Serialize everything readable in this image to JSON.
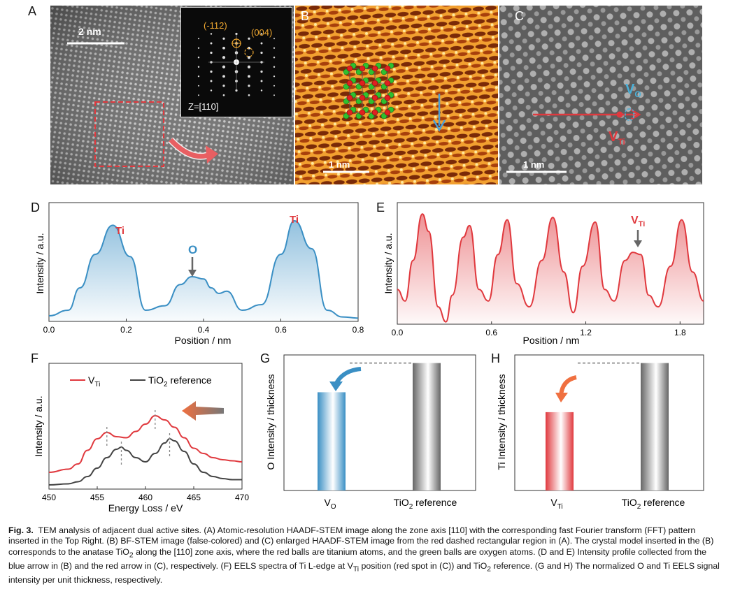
{
  "colors": {
    "red": "#e0393e",
    "blue": "#3a8fc4",
    "gray": "#555555",
    "orange": "#f07040"
  },
  "panelA": {
    "letter": "A",
    "scale": "2 nm",
    "fft_label1": "(-112)",
    "fft_label2": "(004)",
    "zone": "Z=[110]"
  },
  "panelB": {
    "letter": "B",
    "scale": "1 nm"
  },
  "panelC": {
    "letter": "C",
    "scale": "1 nm",
    "vo_main": "V",
    "vo_sub": "O",
    "vti_main": "V",
    "vti_sub": "Ti"
  },
  "panelD": {
    "letter": "D",
    "ylabel": "Intensity / a.u.",
    "xlabel": "Position / nm",
    "ticks": [
      "0.0",
      "0.2",
      "0.4",
      "0.6",
      "0.8"
    ],
    "ti1": "Ti",
    "ti2": "Ti",
    "o": "O"
  },
  "panelE": {
    "letter": "E",
    "ylabel": "Intensity / a.u.",
    "xlabel": "Position / nm",
    "ticks": [
      "0.0",
      "0.6",
      "1.2",
      "1.8"
    ],
    "vti_main": "V",
    "vti_sub": "Ti"
  },
  "panelF": {
    "letter": "F",
    "ylabel": "Intensity / a.u.",
    "xlabel": "Energy Loss / eV",
    "ticks": [
      "450",
      "455",
      "460",
      "465",
      "470"
    ],
    "legend1_main": "V",
    "legend1_sub": "Ti",
    "legend2_pre": "TiO",
    "legend2_sub": "2",
    "legend2_post": " reference"
  },
  "panelG": {
    "letter": "G",
    "ylabel": "O Intensity / thickness",
    "cat1_main": "V",
    "cat1_sub": "O",
    "cat2_pre": "TiO",
    "cat2_sub": "2",
    "cat2_post": " reference"
  },
  "panelH": {
    "letter": "H",
    "ylabel": "Ti Intensity / thickness",
    "cat1_main": "V",
    "cat1_sub": "Ti",
    "cat2_pre": "TiO",
    "cat2_sub": "2",
    "cat2_post": " reference"
  },
  "chart_data": [
    {
      "type": "line",
      "panel": "D",
      "xlabel": "Position / nm",
      "ylabel": "Intensity / a.u.",
      "xlim": [
        0,
        0.8
      ],
      "x": [
        0.0,
        0.05,
        0.08,
        0.12,
        0.165,
        0.21,
        0.25,
        0.3,
        0.34,
        0.37,
        0.4,
        0.42,
        0.44,
        0.46,
        0.5,
        0.55,
        0.6,
        0.635,
        0.68,
        0.72,
        0.76,
        0.8
      ],
      "y": [
        0.05,
        0.1,
        0.3,
        0.6,
        0.86,
        0.58,
        0.1,
        0.14,
        0.33,
        0.4,
        0.38,
        0.3,
        0.25,
        0.27,
        0.1,
        0.15,
        0.6,
        0.9,
        0.65,
        0.1,
        0.04,
        0.03
      ],
      "annotations": [
        "Ti",
        "O",
        "Ti"
      ]
    },
    {
      "type": "line",
      "panel": "E",
      "xlabel": "Position / nm",
      "ylabel": "Intensity / a.u.",
      "xlim": [
        0,
        1.95
      ],
      "x": [
        0.0,
        0.05,
        0.1,
        0.16,
        0.2,
        0.26,
        0.31,
        0.35,
        0.42,
        0.46,
        0.52,
        0.58,
        0.64,
        0.7,
        0.76,
        0.84,
        0.92,
        0.99,
        1.06,
        1.12,
        1.18,
        1.26,
        1.32,
        1.38,
        1.45,
        1.5,
        1.55,
        1.6,
        1.66,
        1.74,
        1.81,
        1.88,
        1.95
      ],
      "y": [
        0.3,
        0.2,
        0.55,
        0.95,
        0.8,
        0.15,
        0.02,
        0.25,
        0.75,
        0.85,
        0.3,
        0.2,
        0.6,
        0.9,
        0.35,
        0.15,
        0.55,
        0.92,
        0.45,
        0.1,
        0.5,
        0.88,
        0.3,
        0.2,
        0.55,
        0.62,
        0.6,
        0.25,
        0.15,
        0.5,
        0.9,
        0.45,
        0.2
      ],
      "annotations": [
        "V_Ti"
      ]
    },
    {
      "type": "line",
      "panel": "F",
      "xlabel": "Energy Loss / eV",
      "ylabel": "Intensity / a.u.",
      "xlim": [
        450,
        470
      ],
      "series": [
        {
          "name": "V_Ti",
          "color": "#e0393e",
          "x": [
            450,
            452,
            453,
            454,
            455,
            456,
            457,
            458,
            459,
            460,
            461,
            462,
            463,
            464,
            465,
            466,
            467,
            468,
            469,
            470
          ],
          "y": [
            0.12,
            0.15,
            0.2,
            0.33,
            0.44,
            0.5,
            0.46,
            0.45,
            0.51,
            0.58,
            0.66,
            0.62,
            0.55,
            0.45,
            0.35,
            0.3,
            0.26,
            0.24,
            0.23,
            0.22
          ]
        },
        {
          "name": "TiO2 reference",
          "color": "#444444",
          "x": [
            450,
            452,
            453,
            454,
            455,
            456,
            457,
            457.5,
            458,
            459,
            460,
            461,
            462,
            462.5,
            463,
            464,
            465,
            466,
            467,
            468,
            469,
            470
          ],
          "y": [
            0.0,
            0.01,
            0.03,
            0.08,
            0.16,
            0.26,
            0.34,
            0.36,
            0.33,
            0.26,
            0.22,
            0.3,
            0.4,
            0.44,
            0.42,
            0.32,
            0.2,
            0.12,
            0.08,
            0.06,
            0.05,
            0.05
          ]
        }
      ]
    },
    {
      "type": "bar",
      "panel": "G",
      "ylabel": "O Intensity / thickness",
      "categories": [
        "V_O",
        "TiO2 reference"
      ],
      "values": [
        0.74,
        0.96
      ]
    },
    {
      "type": "bar",
      "panel": "H",
      "ylabel": "Ti Intensity / thickness",
      "categories": [
        "V_Ti",
        "TiO2 reference"
      ],
      "values": [
        0.59,
        0.96
      ]
    }
  ],
  "caption": {
    "fig": "Fig. 3.",
    "text1": "TEM analysis of adjacent dual active sites. (A) Atomic-resolution HAADF-STEM image along the zone axis [110] with the corresponding fast Fourier transform (FFT) pattern inserted in the Top Right. (B) BF-STEM image (false-colored) and (C) enlarged HAADF-STEM image from the red dashed rectangular region in (A). The crystal model inserted in the (B) corresponds to the anatase TiO",
    "sub1": "2",
    "text2": " along the [110] zone axis, where the red balls are titanium atoms, and the green balls are oxygen atoms. (D and E) Intensity profile collected from the blue arrow in (B) and the red arrow in (C), respectively. (F) EELS spectra of Ti L-edge at V",
    "sub2": "Ti",
    "text3": " position (red spot in (C)) and TiO",
    "sub3": "2",
    "text4": " reference. (G and H) The normalized O and Ti EELS signal intensity per unit thickness, respectively."
  }
}
